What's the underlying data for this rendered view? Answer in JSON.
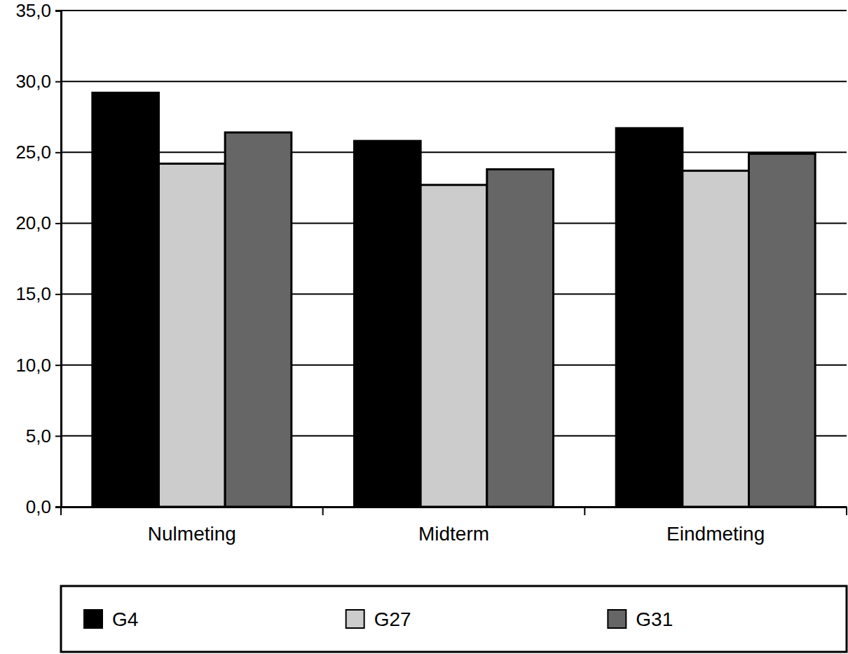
{
  "chart_data": {
    "type": "bar",
    "categories": [
      "Nulmeting",
      "Midterm",
      "Eindmeting"
    ],
    "series": [
      {
        "name": "G4",
        "color": "#000000",
        "values": [
          29.2,
          25.8,
          26.7
        ]
      },
      {
        "name": "G27",
        "color": "#cccccc",
        "values": [
          24.2,
          22.7,
          23.7
        ]
      },
      {
        "name": "G31",
        "color": "#666666",
        "values": [
          26.4,
          23.8,
          24.9
        ]
      }
    ],
    "ylim": [
      0,
      35
    ],
    "yticks": [
      {
        "value": 0,
        "label": "0,0"
      },
      {
        "value": 5,
        "label": "5,0"
      },
      {
        "value": 10,
        "label": "10,0"
      },
      {
        "value": 15,
        "label": "15,0"
      },
      {
        "value": 20,
        "label": "20,0"
      },
      {
        "value": 25,
        "label": "25,0"
      },
      {
        "value": 30,
        "label": "30,0"
      },
      {
        "value": 35,
        "label": "35,0"
      }
    ],
    "grid": true,
    "legend": "bottom"
  }
}
